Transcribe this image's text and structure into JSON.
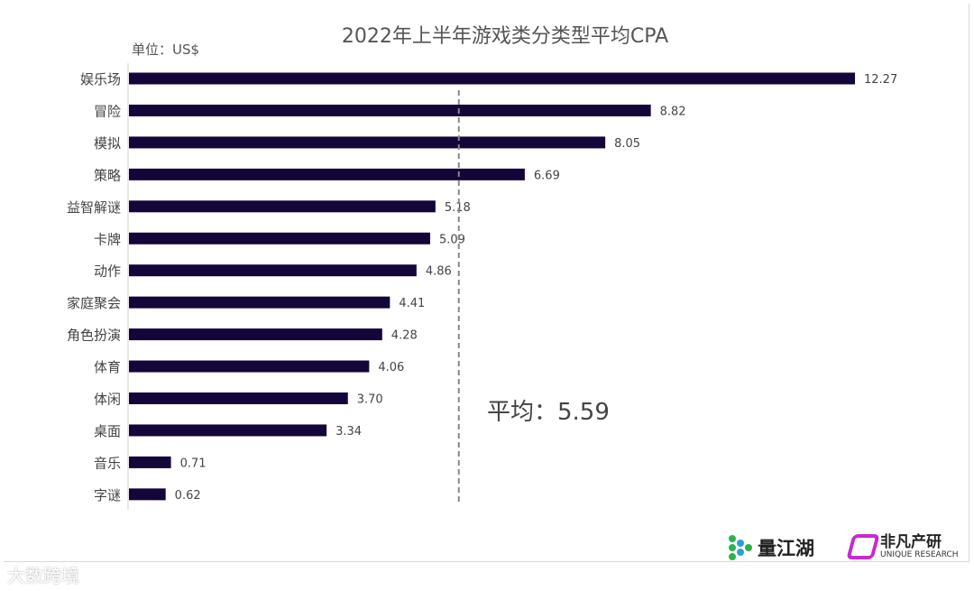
{
  "chart_data": {
    "type": "bar",
    "orientation": "horizontal",
    "title": "2022年上半年游戏类分类型平均CPA",
    "unit_label": "单位：US$",
    "categories": [
      "娱乐场",
      "冒险",
      "模拟",
      "策略",
      "益智解谜",
      "卡牌",
      "动作",
      "家庭聚会",
      "角色扮演",
      "体育",
      "体闲",
      "桌面",
      "音乐",
      "字谜"
    ],
    "values": [
      12.27,
      8.82,
      8.05,
      6.69,
      5.18,
      5.09,
      4.86,
      4.41,
      4.28,
      4.06,
      3.7,
      3.34,
      0.71,
      0.62
    ],
    "value_labels": [
      "12.27",
      "8.82",
      "8.05",
      "6.69",
      "5.18",
      "5.09",
      "4.86",
      "4.41",
      "4.28",
      "4.06",
      "3.70",
      "3.34",
      "0.71",
      "0.62"
    ],
    "average": {
      "label": "平均：5.59",
      "value": 5.59
    },
    "bar_color": "#14063a",
    "grid": false,
    "legend": "none"
  },
  "logos": {
    "left": "量江湖",
    "right_cn": "非凡产研",
    "right_en": "UNIQUE RESEARCH"
  },
  "watermark": "大数跨境"
}
